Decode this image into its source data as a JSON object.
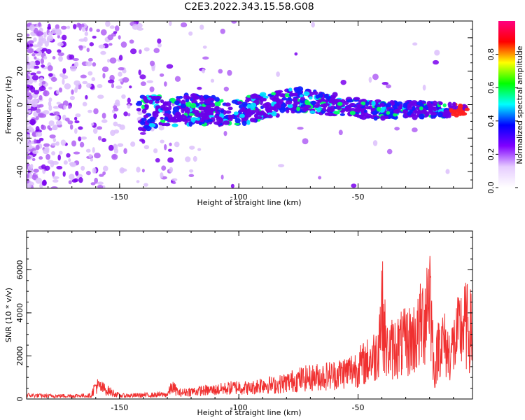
{
  "title": "C2E3.2022.343.15.58.G08",
  "chart_data": [
    {
      "type": "heatmap",
      "xlabel": "Height of straight line (km)",
      "ylabel": "Frequency (Hz)",
      "xlim": [
        -189,
        -2
      ],
      "ylim": [
        -50,
        50
      ],
      "xticks": [
        -150,
        -100,
        -50
      ],
      "xtick_labels": [
        "-150",
        "-100",
        "-50"
      ],
      "yticks": [
        -40,
        -20,
        0,
        20,
        40
      ],
      "ytick_labels": [
        "-40",
        "-20",
        "0",
        "20",
        "40"
      ],
      "signal_track": [
        {
          "x": -140,
          "y": -5
        },
        {
          "x": -120,
          "y": -3
        },
        {
          "x": -100,
          "y": -4
        },
        {
          "x": -90,
          "y": -1
        },
        {
          "x": -75,
          "y": 3
        },
        {
          "x": -60,
          "y": 0
        },
        {
          "x": -45,
          "y": -3
        },
        {
          "x": -30,
          "y": -3
        },
        {
          "x": -15,
          "y": -3
        },
        {
          "x": -5,
          "y": -3
        }
      ],
      "colorbar": {
        "label": "Normalized spectral amplitude",
        "range": [
          0.0,
          1.0
        ],
        "ticks": [
          0.0,
          0.2,
          0.4,
          0.6,
          0.8
        ],
        "tick_labels": [
          "0.0",
          "0.2",
          "0.4",
          "0.6",
          "0.8"
        ],
        "colormap": [
          "#ffffff",
          "#e6ccff",
          "#8000ff",
          "#0000ff",
          "#00ffff",
          "#00ff00",
          "#ffff00",
          "#ff0000",
          "#ff0080"
        ]
      }
    },
    {
      "type": "line",
      "xlabel": "Height of straight line (km)",
      "ylabel": "SNR (10 * v/v)",
      "xlim": [
        -189,
        -2
      ],
      "ylim": [
        0,
        7800
      ],
      "xticks": [
        -150,
        -100,
        -50
      ],
      "xtick_labels": [
        "-150",
        "-100",
        "-50"
      ],
      "yticks": [
        0,
        2000,
        4000,
        6000
      ],
      "ytick_labels": [
        "0",
        "2000",
        "4000",
        "6000"
      ],
      "line_color": "#f03030",
      "series": [
        {
          "x": [
            -189,
            -180,
            -170,
            -162,
            -160,
            -150,
            -140,
            -130,
            -128,
            -125,
            -120,
            -110,
            -100,
            -95,
            -90,
            -85,
            -80,
            -75,
            -70,
            -65,
            -60,
            -55,
            -50,
            -45,
            -42,
            -40,
            -38,
            -35,
            -30,
            -25,
            -22,
            -20,
            -18,
            -16,
            -14,
            -12,
            -10,
            -8,
            -6,
            -4,
            -2
          ],
          "y": [
            250,
            200,
            210,
            230,
            900,
            220,
            250,
            300,
            800,
            400,
            500,
            600,
            800,
            700,
            1000,
            900,
            1100,
            1300,
            1400,
            1500,
            1600,
            1800,
            2100,
            2600,
            3000,
            6100,
            3100,
            3400,
            3700,
            4200,
            5600,
            7800,
            1500,
            3900,
            3700,
            3000,
            3500,
            4200,
            4900,
            4700,
            4300
          ]
        }
      ]
    }
  ]
}
